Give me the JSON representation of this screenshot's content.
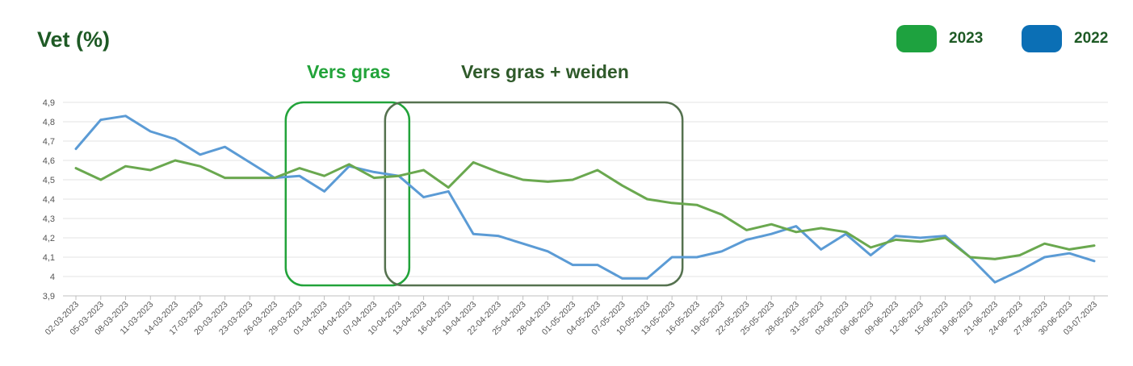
{
  "title": "Vet (%)",
  "annotations": [
    {
      "label": "Vers gras",
      "color": "#22a33a",
      "start_category": "29-03-2023",
      "end_category": "10-04-2023"
    },
    {
      "label": "Vers gras + weiden",
      "color": "#2f5a2a",
      "border": "#55724f",
      "start_category": "10-04-2023",
      "end_category": "13-05-2023"
    }
  ],
  "chart_data": {
    "type": "line",
    "title": "Vet (%)",
    "xlabel": "",
    "ylabel": "",
    "ylim": [
      3.9,
      4.9
    ],
    "yticks": [
      "3,9",
      "4",
      "4,1",
      "4,2",
      "4,3",
      "4,4",
      "4,5",
      "4,6",
      "4,7",
      "4,8",
      "4,9"
    ],
    "grid": true,
    "legend_position": "top-right",
    "categories": [
      "02-03-2023",
      "05-03-2023",
      "08-03-2023",
      "11-03-2023",
      "14-03-2023",
      "17-03-2023",
      "20-03-2023",
      "23-03-2023",
      "26-03-2023",
      "29-03-2023",
      "01-04-2023",
      "04-04-2023",
      "07-04-2023",
      "10-04-2023",
      "13-04-2023",
      "16-04-2023",
      "19-04-2023",
      "22-04-2023",
      "25-04-2023",
      "28-04-2023",
      "01-05-2023",
      "04-05-2023",
      "07-05-2023",
      "10-05-2023",
      "13-05-2023",
      "16-05-2023",
      "19-05-2023",
      "22-05-2023",
      "25-05-2023",
      "28-05-2023",
      "31-05-2023",
      "03-06-2023",
      "06-06-2023",
      "09-06-2023",
      "12-06-2023",
      "15-06-2023",
      "18-06-2023",
      "21-06-2023",
      "24-06-2023",
      "27-06-2023",
      "30-06-2023",
      "03-07-2023"
    ],
    "series": [
      {
        "name": "2023",
        "color": "#6aa84f",
        "legend_color": "#1ea23f",
        "values": [
          4.56,
          4.5,
          4.57,
          4.55,
          4.6,
          4.57,
          4.51,
          4.51,
          4.51,
          4.56,
          4.52,
          4.58,
          4.51,
          4.52,
          4.55,
          4.46,
          4.59,
          4.54,
          4.5,
          4.49,
          4.5,
          4.55,
          4.47,
          4.4,
          4.38,
          4.37,
          4.32,
          4.24,
          4.27,
          4.23,
          4.25,
          4.23,
          4.15,
          4.19,
          4.18,
          4.2,
          4.1,
          4.09,
          4.11,
          4.17,
          4.14,
          4.16
        ]
      },
      {
        "name": "2022",
        "color": "#5b9bd5",
        "legend_color": "#0b6fb5",
        "values": [
          4.66,
          4.81,
          4.83,
          4.75,
          4.71,
          4.63,
          4.67,
          4.59,
          4.51,
          4.52,
          4.44,
          4.57,
          4.54,
          4.52,
          4.41,
          4.44,
          4.22,
          4.21,
          4.17,
          4.13,
          4.06,
          4.06,
          3.99,
          3.99,
          4.1,
          4.1,
          4.13,
          4.19,
          4.22,
          4.26,
          4.14,
          4.22,
          4.11,
          4.21,
          4.2,
          4.21,
          4.1,
          3.97,
          4.03,
          4.1,
          4.12,
          4.08
        ]
      }
    ]
  }
}
